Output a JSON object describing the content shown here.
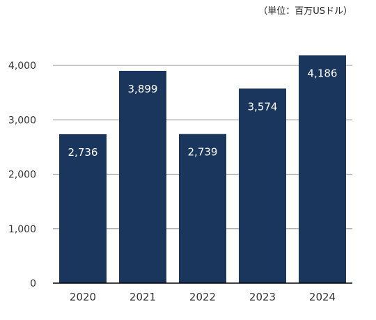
{
  "chart_data": {
    "type": "bar",
    "unit_note": "（単位：百万USドル）",
    "categories": [
      "2020",
      "2021",
      "2022",
      "2023",
      "2024"
    ],
    "values": [
      2736,
      3899,
      2739,
      3574,
      4186
    ],
    "value_labels": [
      "2,736",
      "3,899",
      "2,739",
      "3,574",
      "4,186"
    ],
    "ylim": [
      0,
      4000
    ],
    "yticks": [
      0,
      1000,
      2000,
      3000,
      4000
    ],
    "ytick_labels": [
      "0",
      "1,000",
      "2,000",
      "3,000",
      "4,000"
    ],
    "grid": true,
    "legend": "none",
    "colors": {
      "bar": "#1b365d",
      "bar_label": "#ffffff",
      "grid": "#a6a6a6",
      "axis": "#000000",
      "text": "#333333"
    }
  }
}
